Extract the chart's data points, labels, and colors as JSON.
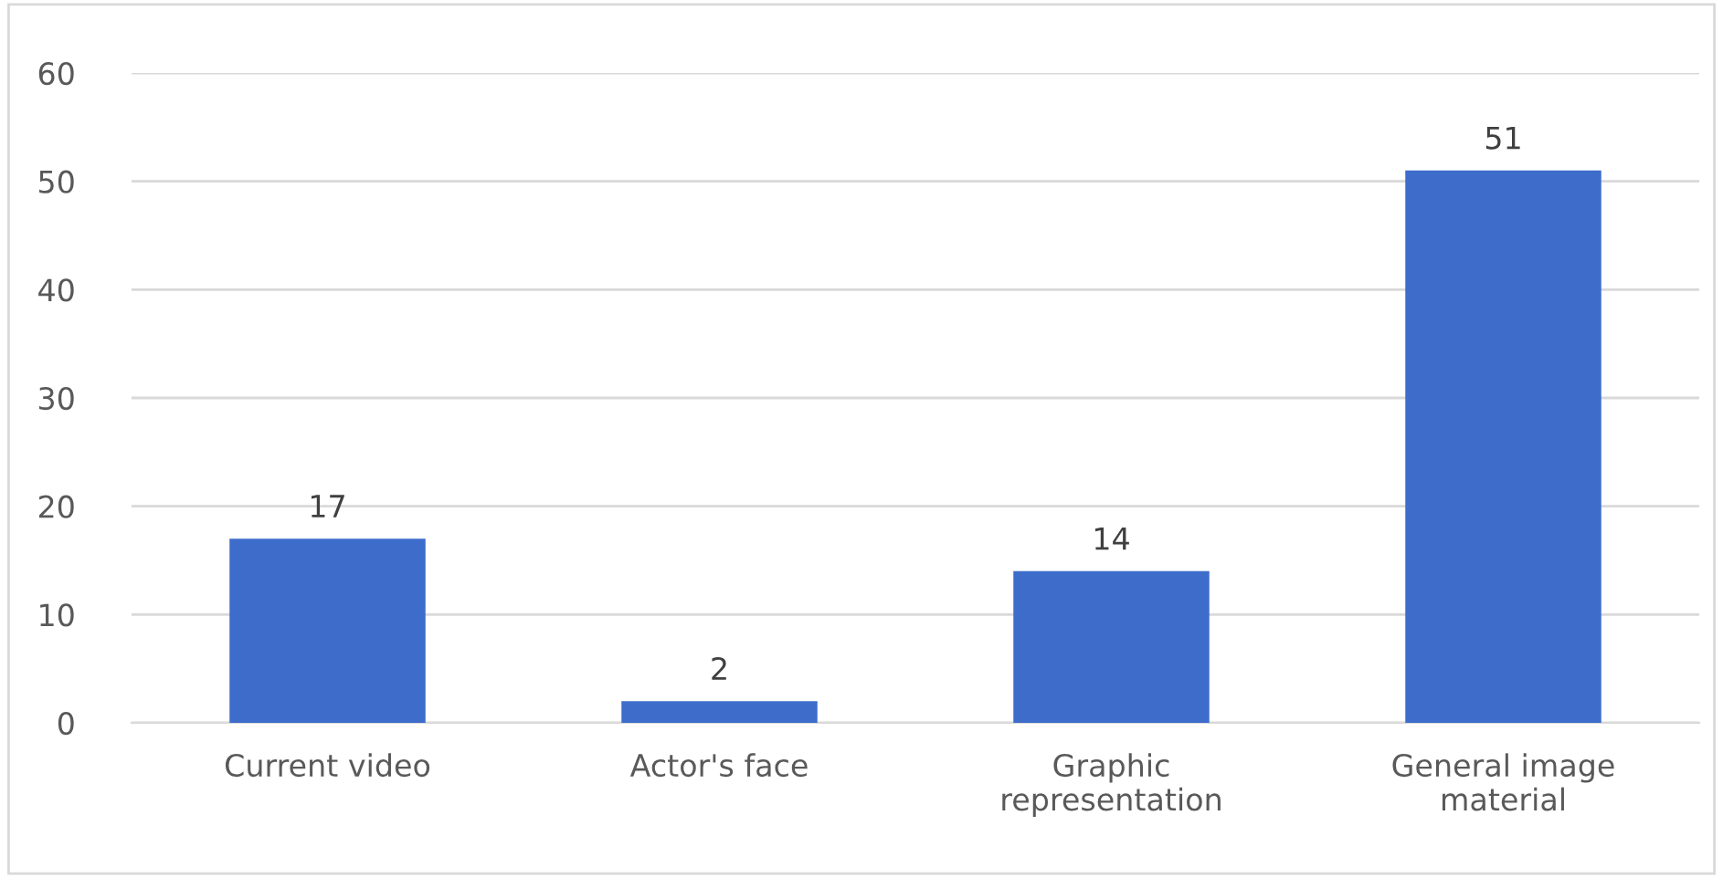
{
  "chart_data": {
    "type": "bar",
    "categories": [
      "Current video",
      "Actor's face",
      "Graphic\nrepresentation",
      "General image\nmaterial"
    ],
    "values": [
      17,
      2,
      14,
      51
    ],
    "color": "#3d6ccb",
    "ylim": [
      0,
      60
    ],
    "yticks": [
      0,
      10,
      20,
      30,
      40,
      50,
      60
    ],
    "grid": "y",
    "data_labels": true
  }
}
